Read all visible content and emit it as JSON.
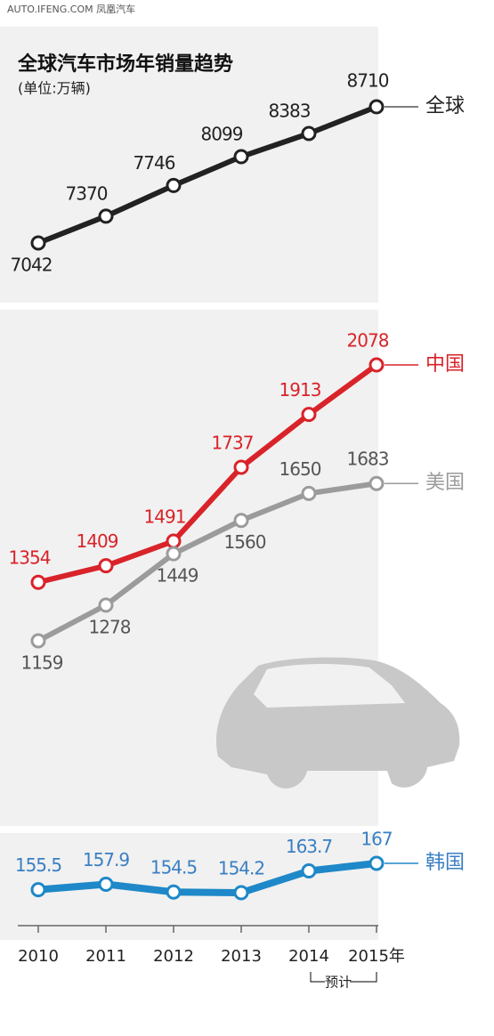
{
  "source": "AUTO.IFENG.COM 凤凰汽车",
  "chart_data": [
    {
      "type": "line",
      "title": "全球汽车市场年销量趋势",
      "subtitle": "(单位:万辆)",
      "series": [
        {
          "name": "全球",
          "color": "#222222",
          "values": [
            7042,
            7370,
            7746,
            8099,
            8383,
            8710
          ]
        }
      ]
    },
    {
      "type": "line",
      "series": [
        {
          "name": "中国",
          "color": "#d9232a",
          "values": [
            1354,
            1409,
            1491,
            1737,
            1913,
            2078
          ]
        },
        {
          "name": "美国",
          "color": "#9b9b9b",
          "values": [
            1159,
            1278,
            1449,
            1560,
            1650,
            1683
          ]
        }
      ]
    },
    {
      "type": "line",
      "categories": [
        "2010",
        "2011",
        "2012",
        "2013",
        "2014",
        "2015年"
      ],
      "annotation": "预计",
      "series": [
        {
          "name": "韩国",
          "color": "#1e88c8",
          "values": [
            155.5,
            157.9,
            154.5,
            154.2,
            163.7,
            167
          ]
        }
      ]
    }
  ]
}
